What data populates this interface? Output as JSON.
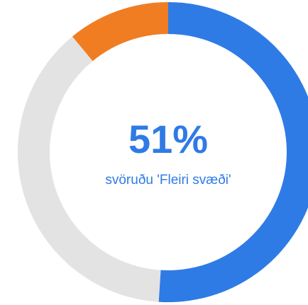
{
  "chart_data": {
    "type": "donut",
    "values": [
      51,
      38,
      11
    ],
    "value_labels": [
      "51%",
      null,
      null
    ],
    "colors": [
      "#2f7be6",
      "#e3e3e3",
      "#f07d22"
    ],
    "subtitle": "svöruðu 'Fleiri svæði'"
  }
}
